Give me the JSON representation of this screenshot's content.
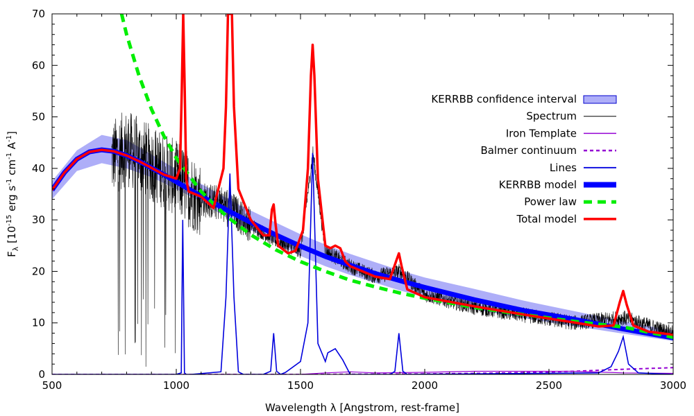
{
  "chart_data": {
    "type": "line",
    "xlabel": "Wavelength λ  [Angstrom, rest-frame]",
    "ylabel_parts": [
      "F",
      "λ",
      "  [10",
      "-15",
      " erg s",
      "-1",
      " cm",
      "-1",
      " A",
      "-1",
      "]"
    ],
    "xlim": [
      500,
      3000
    ],
    "ylim": [
      0,
      70
    ],
    "x_ticks": [
      "500",
      "1000",
      "1500",
      "2000",
      "2500",
      "3000"
    ],
    "y_ticks": [
      "0",
      "10",
      "20",
      "30",
      "40",
      "50",
      "60",
      "70"
    ],
    "grid": false,
    "legend_position": "top-right",
    "colors": {
      "confidence_fill": "#aeaef8",
      "confidence_edge": "#0000cc",
      "spectrum": "#000000",
      "iron": "#9400d3",
      "balmer": "#9400d3",
      "lines": "#0000dd",
      "kerrbb": "#0000ff",
      "powerlaw": "#00ee00",
      "total": "#ff0000"
    },
    "series": [
      {
        "name": "KERRBB confidence interval",
        "style": "band",
        "x": [
          500,
          600,
          700,
          800,
          900,
          1000,
          1100,
          1200,
          1300,
          1400,
          1500,
          1600,
          1700,
          1800,
          1900,
          2000,
          2200,
          2400,
          2600,
          2800,
          3000
        ],
        "lower": [
          34,
          39.5,
          41,
          40,
          38.3,
          36,
          33.5,
          30.5,
          28,
          25.5,
          23,
          21,
          19.3,
          17.8,
          16.3,
          15,
          12.6,
          10.9,
          9.4,
          7.9,
          6.5
        ],
        "upper": [
          37.5,
          43.5,
          46.5,
          45.5,
          42.7,
          39.8,
          37,
          34.3,
          31.8,
          29.5,
          27.2,
          25.2,
          23.4,
          21.8,
          20.2,
          18.8,
          16.6,
          14.3,
          12.3,
          10.3,
          8.5
        ]
      },
      {
        "name": "Spectrum",
        "style": "noisy",
        "x": [
          740,
          800,
          900,
          1000,
          1100,
          1200,
          1300,
          1400,
          1500,
          1550,
          1600,
          1700,
          1800,
          1900,
          2000,
          2200,
          2400,
          2600,
          2800,
          3000
        ],
        "y": [
          42,
          44,
          41,
          38,
          34,
          33,
          29,
          26,
          24,
          43,
          24,
          21,
          19,
          20,
          15.5,
          13,
          11.5,
          10,
          11,
          8
        ]
      },
      {
        "name": "Iron Template",
        "style": "thin",
        "x": [
          500,
          1000,
          1500,
          1600,
          1700,
          1800,
          2000,
          2200,
          2400,
          2600,
          2800,
          3000
        ],
        "y": [
          0,
          0,
          0,
          0.3,
          0.5,
          0.3,
          0.4,
          0.6,
          0.6,
          0.6,
          0.3,
          0.2
        ]
      },
      {
        "name": "Balmer continuum",
        "style": "dotted",
        "x": [
          500,
          1000,
          1500,
          2000,
          2200,
          2400,
          2600,
          2800,
          3000
        ],
        "y": [
          0,
          0,
          0,
          0.1,
          0.2,
          0.35,
          0.6,
          1.0,
          1.3
        ]
      },
      {
        "name": "Lines",
        "style": "thin",
        "x": [
          500,
          1000,
          1020,
          1026,
          1033,
          1040,
          1060,
          1180,
          1200,
          1216,
          1232,
          1250,
          1270,
          1350,
          1380,
          1392,
          1404,
          1420,
          1440,
          1500,
          1530,
          1549,
          1570,
          1600,
          1610,
          1640,
          1670,
          1700,
          1860,
          1880,
          1896,
          1912,
          1930,
          2700,
          2750,
          2780,
          2799,
          2820,
          2860,
          3000
        ],
        "y": [
          0,
          0,
          0.3,
          30,
          0.3,
          0,
          0,
          0.5,
          15,
          39,
          15,
          0.5,
          0,
          0,
          0.6,
          8,
          0.6,
          0,
          0.4,
          2.5,
          10,
          43,
          6,
          2.5,
          4.2,
          5,
          2.8,
          0,
          0,
          0.6,
          8,
          0.6,
          0,
          0.3,
          1.5,
          4.5,
          7.3,
          2,
          0.3,
          0
        ]
      },
      {
        "name": "KERRBB model",
        "style": "thick",
        "x": [
          500,
          550,
          600,
          650,
          700,
          750,
          800,
          850,
          900,
          950,
          1000,
          1100,
          1200,
          1300,
          1400,
          1500,
          1600,
          1700,
          1800,
          1900,
          2000,
          2200,
          2400,
          2600,
          2800,
          3000
        ],
        "y": [
          35.8,
          39.2,
          41.8,
          43.2,
          43.6,
          43.3,
          42.5,
          41.4,
          40.1,
          38.8,
          37.4,
          34.6,
          32,
          29.5,
          27.1,
          24.9,
          22.9,
          21.2,
          19.6,
          18.2,
          16.9,
          14.5,
          12.4,
          10.7,
          8.8,
          7.1
        ]
      },
      {
        "name": "Power law",
        "style": "dashed",
        "x": [
          780,
          800,
          850,
          900,
          950,
          1000,
          1100,
          1200,
          1300,
          1400,
          1500,
          1600,
          1700,
          1800,
          1900,
          2000,
          2200,
          2400,
          2600,
          2800,
          3000
        ],
        "y": [
          70,
          66,
          58,
          51.5,
          46.3,
          42,
          35.5,
          30.8,
          27.1,
          24.2,
          21.9,
          20,
          18.3,
          17,
          15.8,
          14.8,
          13,
          11.6,
          10.3,
          9.2,
          7.2
        ]
      },
      {
        "name": "Total model",
        "style": "thick",
        "x": [
          500,
          550,
          600,
          650,
          700,
          750,
          800,
          850,
          900,
          950,
          1000,
          1015,
          1022,
          1028,
          1034,
          1040,
          1050,
          1100,
          1150,
          1190,
          1200,
          1208,
          1216,
          1224,
          1232,
          1250,
          1300,
          1350,
          1375,
          1385,
          1392,
          1400,
          1410,
          1450,
          1480,
          1510,
          1530,
          1542,
          1549,
          1556,
          1570,
          1600,
          1620,
          1640,
          1660,
          1680,
          1700,
          1800,
          1860,
          1885,
          1896,
          1907,
          1930,
          2000,
          2200,
          2400,
          2600,
          2700,
          2760,
          2785,
          2799,
          2813,
          2840,
          2900,
          3000
        ],
        "y": [
          35.8,
          39.2,
          41.8,
          43.2,
          43.6,
          43.3,
          42.5,
          41.4,
          40.1,
          38.8,
          38,
          40,
          55,
          70,
          55,
          38,
          35.5,
          34.5,
          32.3,
          40,
          52,
          70,
          70,
          70,
          52,
          36,
          30,
          27,
          27,
          32,
          33,
          29,
          25,
          23.5,
          24,
          28,
          40,
          58,
          64,
          58,
          38,
          25,
          24.5,
          25,
          24.5,
          22,
          21,
          19,
          18.5,
          22,
          23.5,
          21,
          16.5,
          15,
          13.2,
          11.6,
          10.1,
          9.3,
          9.5,
          14,
          16.2,
          13.5,
          9.5,
          8.3,
          7.7
        ]
      }
    ]
  }
}
